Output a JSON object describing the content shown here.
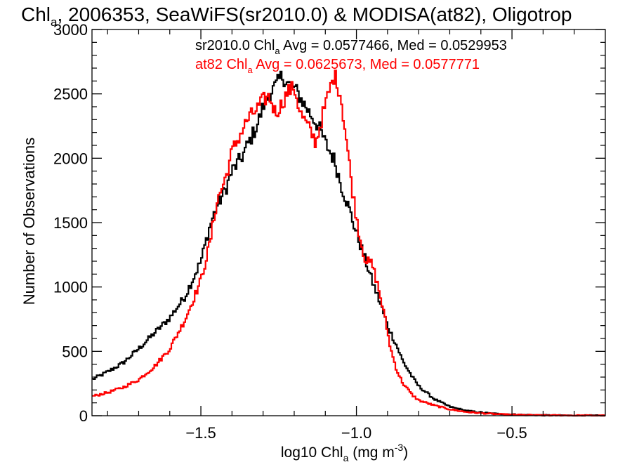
{
  "chart_data": {
    "type": "line",
    "title_parts": [
      "Chl",
      "a",
      ", 2006353, SeaWiFS(sr2010.0) & MODISA(at82), Oligotrop"
    ],
    "xlabel_parts": [
      "log10 Chl",
      "a",
      " (mg m",
      "-3",
      ")"
    ],
    "ylabel": "Number of Observations",
    "xlim": [
      -1.85,
      -0.2
    ],
    "ylim": [
      0,
      3000
    ],
    "x_ticks": [
      -1.5,
      -1.0,
      -0.5
    ],
    "x_tick_labels": [
      "−1.5",
      "−1.0",
      "−0.5"
    ],
    "y_ticks": [
      0,
      500,
      1000,
      1500,
      2000,
      2500,
      3000
    ],
    "y_tick_labels": [
      "0",
      "500",
      "1000",
      "1500",
      "2000",
      "2500",
      "3000"
    ],
    "grid": false,
    "legend_position": "top-right",
    "series": [
      {
        "color": "#000000",
        "legend_parts": [
          "sr2010.0 Chl",
          "a",
          " Avg = 0.0577466, Med = 0.0529953"
        ],
        "points": [
          [
            -1.85,
            280
          ],
          [
            -1.8,
            340
          ],
          [
            -1.75,
            410
          ],
          [
            -1.7,
            520
          ],
          [
            -1.65,
            640
          ],
          [
            -1.6,
            760
          ],
          [
            -1.55,
            930
          ],
          [
            -1.5,
            1200
          ],
          [
            -1.47,
            1480
          ],
          [
            -1.45,
            1620
          ],
          [
            -1.42,
            1760
          ],
          [
            -1.4,
            1900
          ],
          [
            -1.37,
            2000
          ],
          [
            -1.35,
            2100
          ],
          [
            -1.32,
            2250
          ],
          [
            -1.3,
            2400
          ],
          [
            -1.28,
            2500
          ],
          [
            -1.26,
            2560
          ],
          [
            -1.24,
            2640
          ],
          [
            -1.22,
            2580
          ],
          [
            -1.2,
            2550
          ],
          [
            -1.18,
            2470
          ],
          [
            -1.15,
            2350
          ],
          [
            -1.12,
            2240
          ],
          [
            -1.1,
            2120
          ],
          [
            -1.07,
            1980
          ],
          [
            -1.05,
            1800
          ],
          [
            -1.02,
            1580
          ],
          [
            -1.0,
            1420
          ],
          [
            -0.97,
            1200
          ],
          [
            -0.95,
            1050
          ],
          [
            -0.92,
            850
          ],
          [
            -0.9,
            700
          ],
          [
            -0.87,
            540
          ],
          [
            -0.85,
            420
          ],
          [
            -0.82,
            300
          ],
          [
            -0.8,
            230
          ],
          [
            -0.75,
            130
          ],
          [
            -0.7,
            70
          ],
          [
            -0.65,
            40
          ],
          [
            -0.6,
            25
          ],
          [
            -0.55,
            15
          ],
          [
            -0.5,
            10
          ],
          [
            -0.45,
            6
          ],
          [
            -0.4,
            4
          ],
          [
            -0.35,
            3
          ],
          [
            -0.3,
            2
          ],
          [
            -0.2,
            1
          ]
        ]
      },
      {
        "color": "#ff0000",
        "legend_parts": [
          "at82 Chl",
          "a",
          " Avg = 0.0625673, Med = 0.0577771"
        ],
        "points": [
          [
            -1.85,
            150
          ],
          [
            -1.8,
            180
          ],
          [
            -1.75,
            220
          ],
          [
            -1.7,
            280
          ],
          [
            -1.65,
            380
          ],
          [
            -1.6,
            520
          ],
          [
            -1.55,
            750
          ],
          [
            -1.5,
            1050
          ],
          [
            -1.47,
            1350
          ],
          [
            -1.45,
            1650
          ],
          [
            -1.42,
            1850
          ],
          [
            -1.4,
            2050
          ],
          [
            -1.37,
            2200
          ],
          [
            -1.35,
            2300
          ],
          [
            -1.32,
            2380
          ],
          [
            -1.3,
            2450
          ],
          [
            -1.28,
            2480
          ],
          [
            -1.26,
            2350
          ],
          [
            -1.24,
            2420
          ],
          [
            -1.22,
            2520
          ],
          [
            -1.2,
            2550
          ],
          [
            -1.18,
            2350
          ],
          [
            -1.15,
            2220
          ],
          [
            -1.13,
            2120
          ],
          [
            -1.11,
            2320
          ],
          [
            -1.09,
            2500
          ],
          [
            -1.07,
            2650
          ],
          [
            -1.05,
            2480
          ],
          [
            -1.03,
            2100
          ],
          [
            -1.01,
            1700
          ],
          [
            -0.99,
            1400
          ],
          [
            -0.97,
            1200
          ],
          [
            -0.95,
            1180
          ],
          [
            -0.93,
            1000
          ],
          [
            -0.91,
            780
          ],
          [
            -0.89,
            520
          ],
          [
            -0.87,
            350
          ],
          [
            -0.85,
            250
          ],
          [
            -0.82,
            160
          ],
          [
            -0.8,
            120
          ],
          [
            -0.75,
            80
          ],
          [
            -0.7,
            50
          ],
          [
            -0.65,
            30
          ],
          [
            -0.6,
            20
          ],
          [
            -0.55,
            12
          ],
          [
            -0.5,
            8
          ],
          [
            -0.45,
            5
          ],
          [
            -0.4,
            3
          ],
          [
            -0.3,
            2
          ],
          [
            -0.2,
            1
          ]
        ]
      }
    ]
  }
}
